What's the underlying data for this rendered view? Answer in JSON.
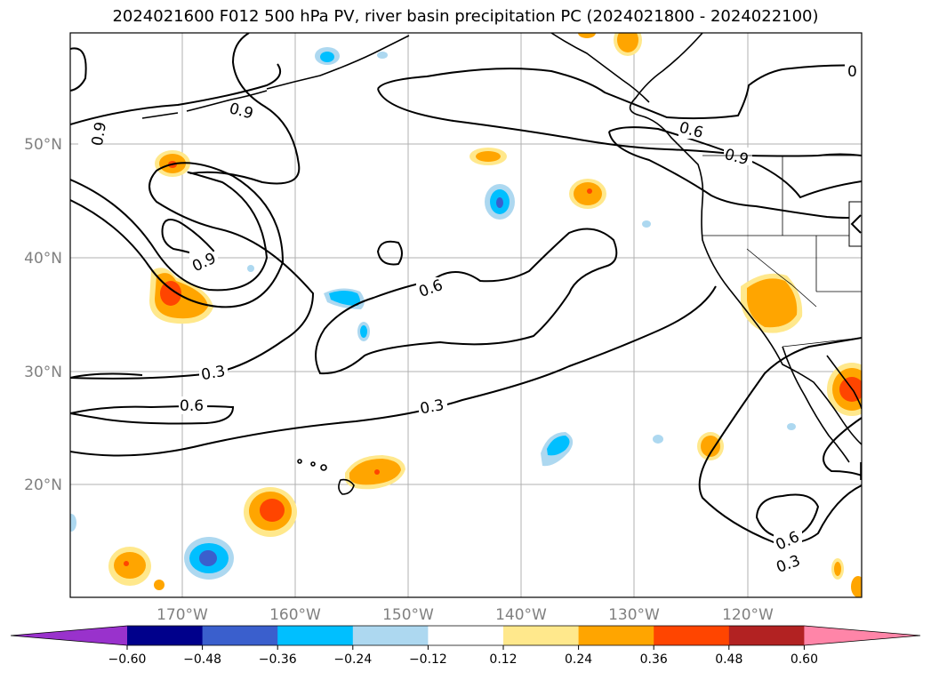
{
  "title": "2024021600 F012 500 hPa PV, river basin precipitation PC (2024021800 - 2024022100)",
  "axes": {
    "lon_labels": [
      "170°W",
      "160°W",
      "150°W",
      "140°W",
      "130°W",
      "120°W"
    ],
    "lat_labels": [
      "50°N",
      "40°N",
      "30°N",
      "20°N"
    ]
  },
  "colorbar": {
    "ticks": [
      "−0.60",
      "−0.48",
      "−0.36",
      "−0.24",
      "−0.12",
      "0.12",
      "0.24",
      "0.36",
      "0.48",
      "0.60"
    ],
    "colors": [
      "#9932cc",
      "#00008b",
      "#3a5fcd",
      "#00bfff",
      "#add8f0",
      "#ffffff",
      "#ffe88c",
      "#ffa500",
      "#ff4500",
      "#b22222",
      "#ff85a8"
    ]
  },
  "contour_labels": [
    {
      "text": "0.9"
    },
    {
      "text": "0.9"
    },
    {
      "text": "0.9"
    },
    {
      "text": "0.9"
    },
    {
      "text": "0.6"
    },
    {
      "text": "0.6"
    },
    {
      "text": "0.6"
    },
    {
      "text": "0.6"
    },
    {
      "text": "0.3"
    },
    {
      "text": "0.3"
    },
    {
      "text": "0.3"
    },
    {
      "text": "0"
    }
  ],
  "colors": {
    "pos_light": "#ffe88c",
    "pos_mid": "#ffa500",
    "pos_high": "#ff4500",
    "neg_light": "#add8f0",
    "neg_mid": "#00bfff",
    "neg_high": "#3a5fcd"
  }
}
